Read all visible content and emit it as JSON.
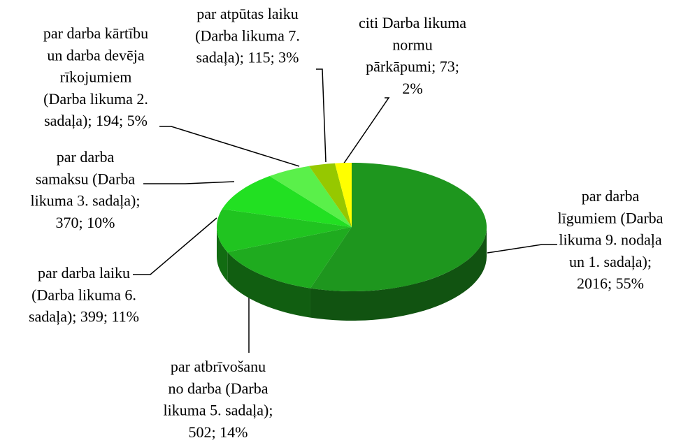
{
  "chart_data": {
    "type": "pie3d",
    "labels": [
      [
        "par darba",
        "līgumiem (Darba",
        "likuma 9. nodaļa",
        "un 1. sadaļa);",
        "2016; 55%"
      ],
      [
        "par atbrīvošanu",
        "no darba (Darba",
        "likuma 5. sadaļa);",
        "502; 14%"
      ],
      [
        "par darba laiku",
        "(Darba likuma 6.",
        "sadaļa); 399; 11%"
      ],
      [
        "par darba",
        "samaksu (Darba",
        "likuma 3. sadaļa);",
        "370; 10%"
      ],
      [
        "par darba kārtību",
        "un darba devēja",
        "rīkojumiem",
        "(Darba likuma 2.",
        "sadaļa); 194; 5%"
      ],
      [
        "par atpūtas laiku",
        "(Darba likuma 7.",
        "sadaļa); 115; 3%"
      ],
      [
        "citi Darba likuma",
        "normu",
        "pārkāpumi; 73;",
        "2%"
      ]
    ],
    "values": [
      2016,
      502,
      399,
      370,
      194,
      115,
      73
    ],
    "colors": [
      "#1e961e",
      "#1fab1f",
      "#20c420",
      "#22e022",
      "#5af04a",
      "#96c800",
      "#ffff00"
    ]
  }
}
